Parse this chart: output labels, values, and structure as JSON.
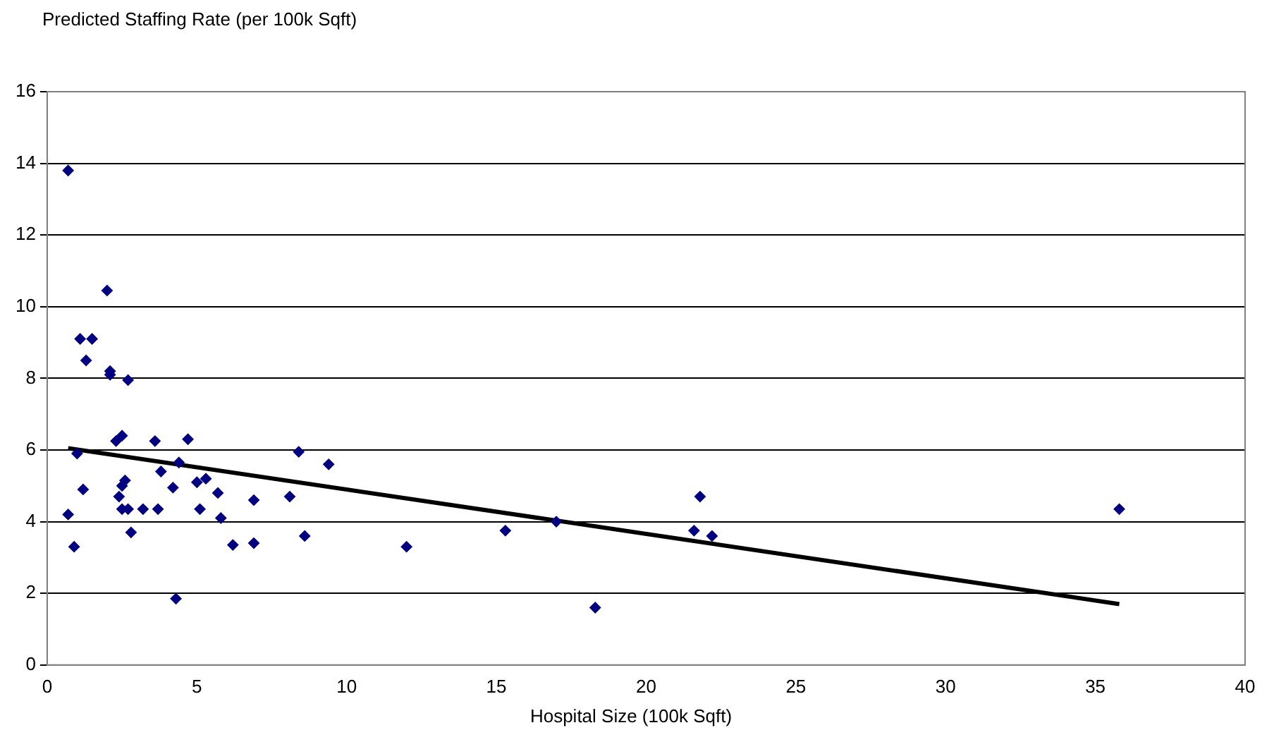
{
  "chart_data": {
    "type": "scatter",
    "title": "Predicted Staffing Rate (per 100k Sqft)",
    "xlabel": "Hospital Size (100k Sqft)",
    "xlim": [
      0,
      40
    ],
    "xticks": [
      0,
      5,
      10,
      15,
      20,
      25,
      30,
      35,
      40
    ],
    "ylim": [
      0,
      16
    ],
    "yticks": [
      0,
      2,
      4,
      6,
      8,
      10,
      12,
      14,
      16
    ],
    "grid": "y",
    "legend": false,
    "marker": "diamond",
    "series": [
      {
        "color": "#000080",
        "x": [
          0.7,
          0.7,
          0.9,
          1.0,
          1.1,
          1.2,
          1.3,
          1.5,
          2.0,
          2.1,
          2.1,
          2.7,
          2.3,
          2.5,
          2.4,
          2.5,
          2.6,
          2.5,
          2.7,
          2.8,
          3.2,
          3.6,
          3.7,
          3.8,
          4.2,
          4.3,
          4.4,
          4.7,
          5.0,
          5.1,
          5.3,
          5.7,
          5.8,
          6.2,
          6.9,
          6.9,
          8.1,
          8.4,
          8.6,
          9.4,
          12.0,
          15.3,
          17.0,
          18.3,
          21.6,
          21.8,
          22.2,
          35.8
        ],
        "values": [
          13.8,
          4.2,
          3.3,
          5.9,
          9.1,
          4.9,
          8.5,
          9.1,
          10.45,
          8.2,
          8.1,
          7.95,
          6.25,
          6.4,
          4.7,
          5.0,
          5.15,
          4.35,
          4.35,
          3.7,
          4.35,
          6.25,
          4.35,
          5.4,
          4.95,
          1.85,
          5.65,
          6.3,
          5.1,
          4.35,
          5.2,
          4.8,
          4.1,
          3.35,
          4.6,
          3.4,
          4.7,
          5.95,
          3.6,
          5.6,
          3.3,
          3.75,
          4.0,
          1.6,
          3.75,
          4.7,
          3.6,
          4.35
        ]
      },
      {
        "type": "line",
        "color": "#000000",
        "marker": "none",
        "x": [
          0.7,
          35.8
        ],
        "values": [
          6.05,
          1.7
        ]
      }
    ]
  }
}
